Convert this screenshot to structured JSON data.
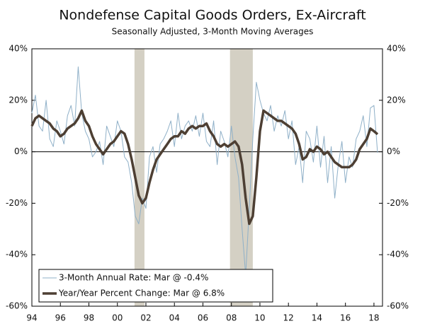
{
  "chart_data": {
    "type": "line",
    "title": "Nondefense Capital Goods Orders, Ex-Aircraft",
    "subtitle": "Seasonally Adjusted, 3-Month Moving Averages",
    "x": [
      1994,
      1994.25,
      1994.5,
      1994.75,
      1995,
      1995.25,
      1995.5,
      1995.75,
      1996,
      1996.25,
      1996.5,
      1996.75,
      1997,
      1997.25,
      1997.5,
      1997.75,
      1998,
      1998.25,
      1998.5,
      1998.75,
      1999,
      1999.25,
      1999.5,
      1999.75,
      2000,
      2000.25,
      2000.5,
      2000.75,
      2001,
      2001.25,
      2001.5,
      2001.75,
      2002,
      2002.25,
      2002.5,
      2002.75,
      2003,
      2003.25,
      2003.5,
      2003.75,
      2004,
      2004.25,
      2004.5,
      2004.75,
      2005,
      2005.25,
      2005.5,
      2005.75,
      2006,
      2006.25,
      2006.5,
      2006.75,
      2007,
      2007.25,
      2007.5,
      2007.75,
      2008,
      2008.25,
      2008.5,
      2008.75,
      2009,
      2009.25,
      2009.5,
      2009.75,
      2010,
      2010.25,
      2010.5,
      2010.75,
      2011,
      2011.25,
      2011.5,
      2011.75,
      2012,
      2012.25,
      2012.5,
      2012.75,
      2013,
      2013.25,
      2013.5,
      2013.75,
      2014,
      2014.25,
      2014.5,
      2014.75,
      2015,
      2015.25,
      2015.5,
      2015.75,
      2016,
      2016.25,
      2016.5,
      2016.75,
      2017,
      2017.25,
      2017.5,
      2017.75,
      2018,
      2018.25
    ],
    "series": [
      {
        "name": "3-Month Annual Rate: Mar @ -0.4%",
        "color": "#8fb0c8",
        "width": 1,
        "values": [
          15,
          22,
          10,
          8,
          20,
          5,
          2,
          12,
          8,
          3,
          14,
          18,
          10,
          33,
          15,
          8,
          5,
          -2,
          0,
          4,
          -5,
          10,
          6,
          2,
          12,
          8,
          -2,
          -4,
          -12,
          -25,
          -28,
          -18,
          -22,
          -2,
          2,
          -8,
          3,
          5,
          8,
          12,
          2,
          15,
          5,
          10,
          12,
          8,
          14,
          6,
          15,
          4,
          2,
          12,
          -5,
          8,
          4,
          -2,
          10,
          -2,
          -10,
          -30,
          -48,
          -22,
          5,
          27,
          20,
          15,
          12,
          18,
          8,
          14,
          10,
          16,
          5,
          12,
          -5,
          2,
          -12,
          8,
          5,
          -4,
          10,
          -6,
          6,
          -12,
          2,
          -18,
          -5,
          4,
          -12,
          -2,
          -6,
          5,
          8,
          14,
          2,
          17,
          18,
          -0.4
        ]
      },
      {
        "name": "Year/Year Percent Change: Mar @ 6.8%",
        "color": "#4d3f33",
        "width": 3.5,
        "values": [
          10,
          13,
          14,
          13,
          12,
          11,
          9,
          8,
          6,
          7,
          9,
          10,
          11,
          13,
          16,
          12,
          10,
          6,
          3,
          1,
          -1,
          1,
          3,
          4,
          6,
          8,
          7,
          3,
          -3,
          -10,
          -17,
          -20,
          -18,
          -12,
          -7,
          -3,
          -1,
          1,
          3,
          5,
          6,
          6,
          8,
          7,
          9,
          10,
          9,
          10,
          10,
          11,
          8,
          6,
          3,
          2,
          3,
          2,
          3,
          4,
          2,
          -5,
          -18,
          -28,
          -25,
          -10,
          8,
          16,
          15,
          14,
          13,
          12,
          12,
          11,
          10,
          9,
          7,
          3,
          -3,
          -2,
          1,
          0,
          2,
          1,
          -1,
          0,
          -2,
          -4,
          -5,
          -6,
          -6,
          -6,
          -5,
          -3,
          1,
          3,
          5,
          9,
          8,
          6.8
        ]
      }
    ],
    "shaded_periods": [
      [
        2001.2,
        2001.9
      ],
      [
        2007.9,
        2009.5
      ]
    ],
    "shade_color": "#d4d0c4",
    "xlim": [
      1994,
      2018.6
    ],
    "xticks": [
      {
        "value": 1994,
        "label": "94"
      },
      {
        "value": 1996,
        "label": "96"
      },
      {
        "value": 1998,
        "label": "98"
      },
      {
        "value": 2000,
        "label": "00"
      },
      {
        "value": 2002,
        "label": "02"
      },
      {
        "value": 2004,
        "label": "04"
      },
      {
        "value": 2006,
        "label": "06"
      },
      {
        "value": 2008,
        "label": "08"
      },
      {
        "value": 2010,
        "label": "10"
      },
      {
        "value": 2012,
        "label": "12"
      },
      {
        "value": 2014,
        "label": "14"
      },
      {
        "value": 2016,
        "label": "16"
      },
      {
        "value": 2018,
        "label": "18"
      }
    ],
    "ylim": [
      -60,
      40
    ],
    "yticks": [
      {
        "value": -60,
        "label": "-60%"
      },
      {
        "value": -40,
        "label": "-40%"
      },
      {
        "value": -20,
        "label": "-20%"
      },
      {
        "value": 0,
        "label": "0%"
      },
      {
        "value": 20,
        "label": "20%"
      },
      {
        "value": 40,
        "label": "40%"
      }
    ],
    "y2lim": [
      -60,
      40
    ],
    "y2ticks": [
      {
        "value": -60,
        "label": "-60%"
      },
      {
        "value": -40,
        "label": "-40%"
      },
      {
        "value": -20,
        "label": "-20%"
      },
      {
        "value": 0,
        "label": "0%"
      },
      {
        "value": 20,
        "label": "20%"
      },
      {
        "value": 40,
        "label": "40%"
      }
    ],
    "legend": "lower-left"
  }
}
